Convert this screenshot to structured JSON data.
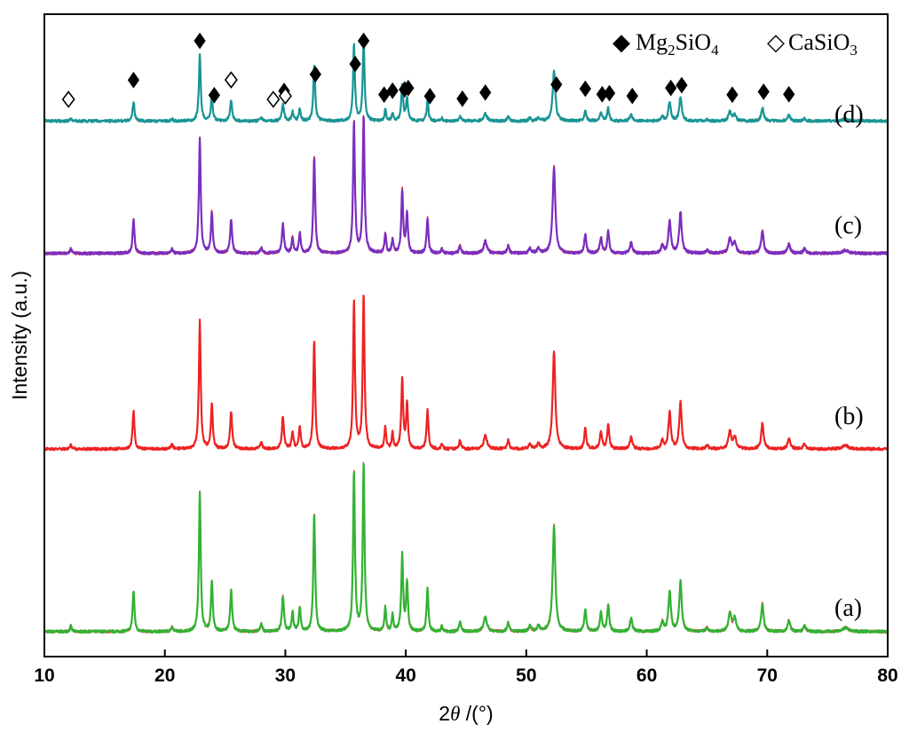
{
  "chart_data": {
    "type": "line",
    "xlabel_prefix": "2",
    "xlabel_theta": "θ",
    "xlabel_suffix": " /(°)",
    "ylabel": "Intensity (a.u.)",
    "xlim": [
      10,
      80
    ],
    "xticks": [
      "10",
      "20",
      "30",
      "40",
      "50",
      "60",
      "70",
      "80"
    ],
    "grid": false,
    "legend": [
      {
        "symbol": "◆",
        "main": "Mg",
        "sub1": "2",
        "mid": "SiO",
        "sub2": "4"
      },
      {
        "symbol": "◇",
        "main": "CaSiO",
        "sub1": "",
        "mid": "",
        "sub2": "3"
      }
    ],
    "legend_position": "top-right",
    "colors": {
      "a": "#33b233",
      "a_overlay": "#e03030",
      "b": "#ee2222",
      "c": "#7a2ec0",
      "c_overlay": "#ee2222",
      "d": "#1a9494"
    },
    "peaks": [
      {
        "x": 12.2,
        "h": 0.03,
        "w": 0.08
      },
      {
        "x": 17.4,
        "h": 0.22,
        "w": 0.09
      },
      {
        "x": 20.6,
        "h": 0.03,
        "w": 0.08
      },
      {
        "x": 22.9,
        "h": 0.75,
        "w": 0.09
      },
      {
        "x": 23.9,
        "h": 0.27,
        "w": 0.09
      },
      {
        "x": 25.5,
        "h": 0.22,
        "w": 0.1
      },
      {
        "x": 28.0,
        "h": 0.04,
        "w": 0.1
      },
      {
        "x": 29.8,
        "h": 0.19,
        "w": 0.1
      },
      {
        "x": 30.6,
        "h": 0.1,
        "w": 0.09
      },
      {
        "x": 31.2,
        "h": 0.13,
        "w": 0.09
      },
      {
        "x": 32.4,
        "h": 0.63,
        "w": 0.09
      },
      {
        "x": 35.7,
        "h": 0.86,
        "w": 0.09
      },
      {
        "x": 36.5,
        "h": 0.9,
        "w": 0.09
      },
      {
        "x": 38.3,
        "h": 0.13,
        "w": 0.08
      },
      {
        "x": 38.9,
        "h": 0.09,
        "w": 0.08
      },
      {
        "x": 39.7,
        "h": 0.41,
        "w": 0.09
      },
      {
        "x": 40.1,
        "h": 0.26,
        "w": 0.09
      },
      {
        "x": 41.8,
        "h": 0.23,
        "w": 0.09
      },
      {
        "x": 43.0,
        "h": 0.03,
        "w": 0.08
      },
      {
        "x": 44.5,
        "h": 0.05,
        "w": 0.1
      },
      {
        "x": 46.6,
        "h": 0.08,
        "w": 0.16
      },
      {
        "x": 48.5,
        "h": 0.05,
        "w": 0.1
      },
      {
        "x": 50.3,
        "h": 0.03,
        "w": 0.12
      },
      {
        "x": 51.0,
        "h": 0.03,
        "w": 0.12
      },
      {
        "x": 52.3,
        "h": 0.57,
        "w": 0.13
      },
      {
        "x": 54.9,
        "h": 0.12,
        "w": 0.1
      },
      {
        "x": 56.2,
        "h": 0.1,
        "w": 0.11
      },
      {
        "x": 56.8,
        "h": 0.14,
        "w": 0.1
      },
      {
        "x": 58.7,
        "h": 0.07,
        "w": 0.12
      },
      {
        "x": 61.3,
        "h": 0.05,
        "w": 0.12
      },
      {
        "x": 61.9,
        "h": 0.21,
        "w": 0.12
      },
      {
        "x": 62.8,
        "h": 0.27,
        "w": 0.12
      },
      {
        "x": 65.0,
        "h": 0.02,
        "w": 0.12
      },
      {
        "x": 66.9,
        "h": 0.1,
        "w": 0.14
      },
      {
        "x": 67.3,
        "h": 0.07,
        "w": 0.14
      },
      {
        "x": 69.6,
        "h": 0.15,
        "w": 0.12
      },
      {
        "x": 71.8,
        "h": 0.06,
        "w": 0.13
      },
      {
        "x": 73.1,
        "h": 0.03,
        "w": 0.12
      },
      {
        "x": 76.5,
        "h": 0.02,
        "w": 0.3
      }
    ],
    "series": [
      {
        "name": "(a)",
        "color_key": "a",
        "overlay_key": "a_overlay",
        "baseline": 0.02,
        "scale": 1.0
      },
      {
        "name": "(b)",
        "color_key": "b",
        "overlay_key": null,
        "baseline": 1.0,
        "scale": 0.92
      },
      {
        "name": "(c)",
        "color_key": "c",
        "overlay_key": "c_overlay",
        "baseline": 2.05,
        "scale": 0.82
      },
      {
        "name": "(d)",
        "color_key": "d",
        "overlay_key": null,
        "baseline": 2.76,
        "scale": 0.48
      }
    ],
    "mg2sio4_markers": [
      17.4,
      22.9,
      24.1,
      25.5,
      29.9,
      32.5,
      35.8,
      36.5,
      38.2,
      38.9,
      39.9,
      40.2,
      42.0,
      44.7,
      46.6,
      52.5,
      54.9,
      56.3,
      56.9,
      58.8,
      62.0,
      62.9,
      67.1,
      69.7,
      71.8
    ],
    "casio3_markers": [
      12.0,
      25.5,
      29.0,
      30.0
    ]
  }
}
